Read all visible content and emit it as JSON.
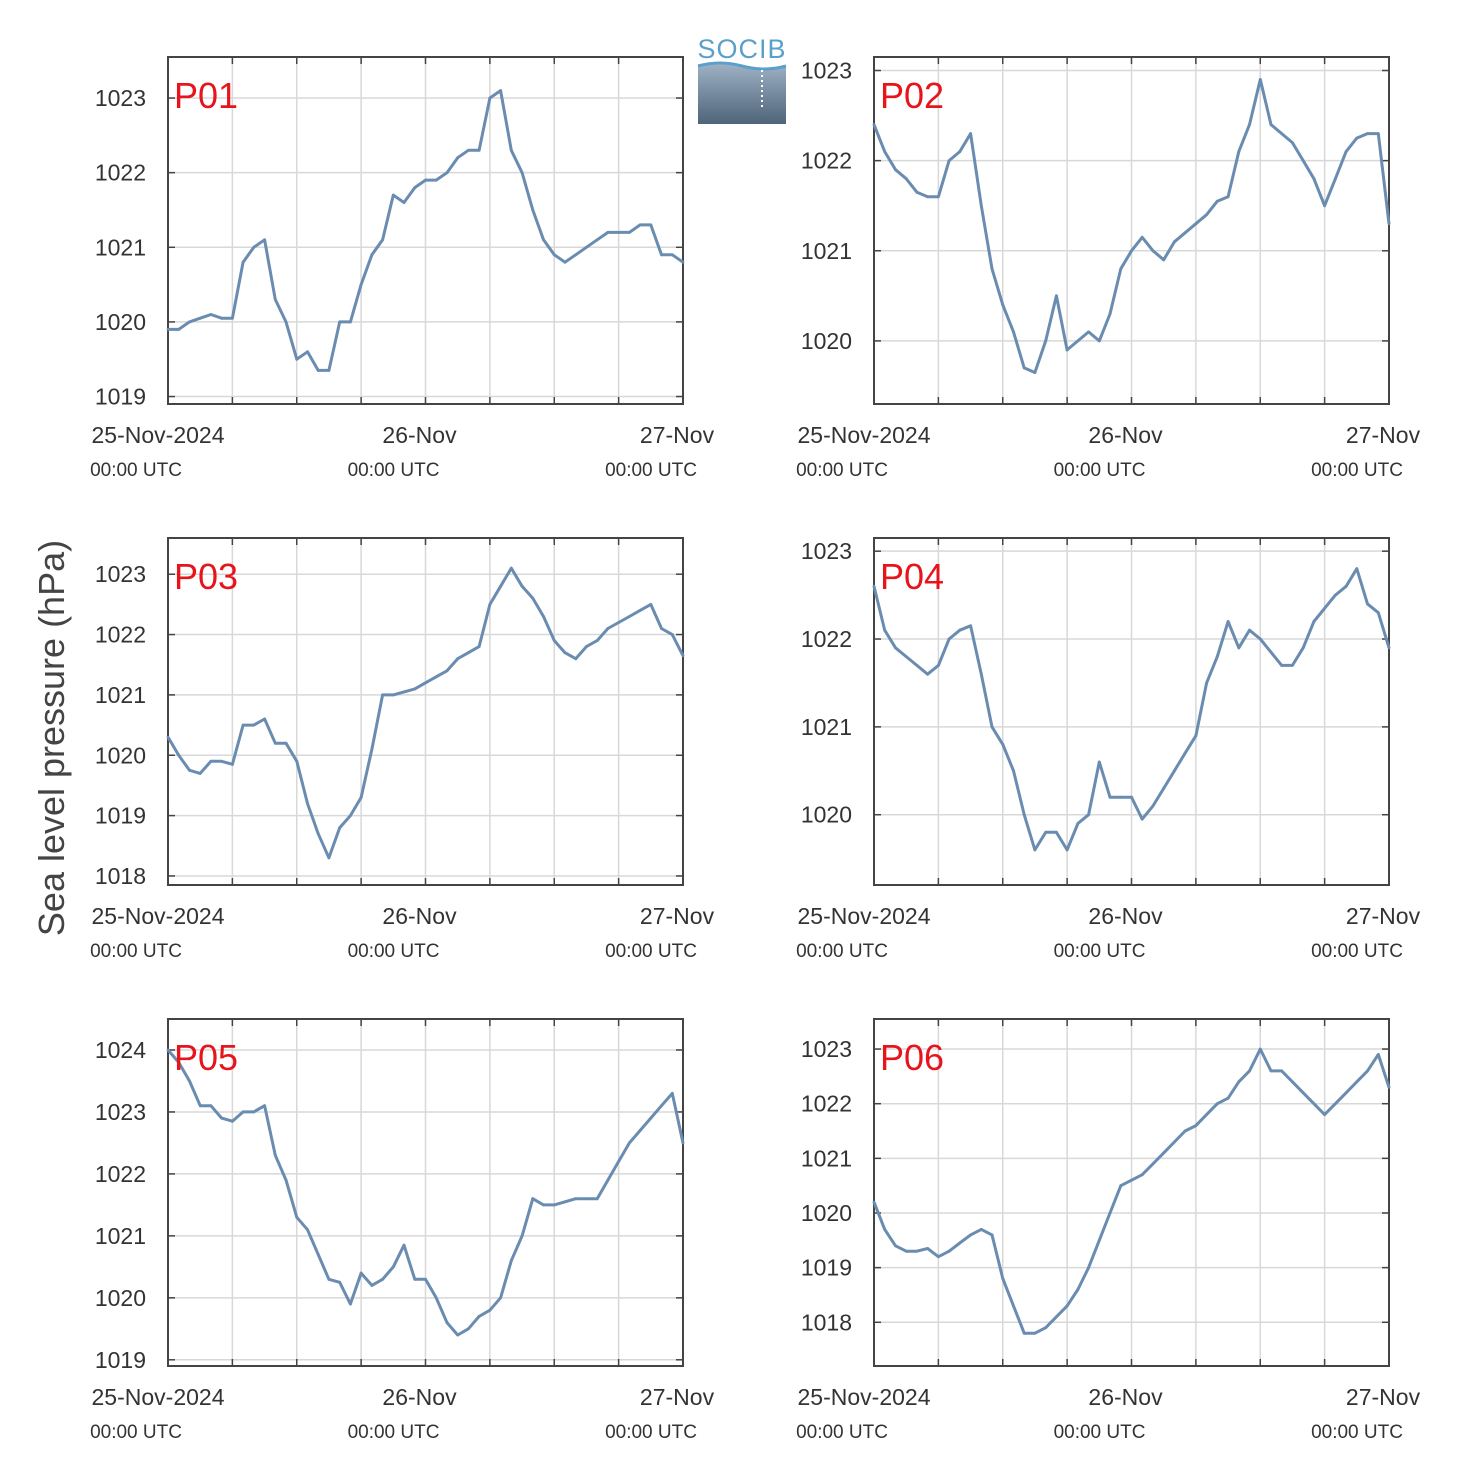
{
  "figure": {
    "ylabel": "Sea level pressure (hPa)",
    "logo_text": "SOCIB",
    "x_ticks": [
      "25-Nov-2024",
      "26-Nov",
      "27-Nov"
    ],
    "x_subticks": [
      "00:00 UTC",
      "00:00 UTC",
      "00:00 UTC"
    ],
    "colors": {
      "line": "#6a8cb0",
      "label": "#e8141c",
      "grid": "#d8d8d8",
      "axis": "#444444"
    }
  },
  "chart_data": [
    {
      "type": "line",
      "title": "P01",
      "xlabel": "",
      "ylabel": "Sea level pressure (hPa)",
      "xlim": [
        0,
        48
      ],
      "ylim": [
        1018.9,
        1023.55
      ],
      "yticks": [
        1019,
        1020,
        1021,
        1022,
        1023
      ],
      "grid": true,
      "x": [
        0,
        1,
        2,
        3,
        4,
        5,
        6,
        7,
        8,
        9,
        10,
        11,
        12,
        13,
        14,
        15,
        16,
        17,
        18,
        19,
        20,
        21,
        22,
        23,
        24,
        25,
        26,
        27,
        28,
        29,
        30,
        31,
        32,
        33,
        34,
        35,
        36,
        37,
        38,
        39,
        40,
        41,
        42,
        43,
        44,
        45,
        46,
        47,
        48
      ],
      "values": [
        1019.9,
        1019.9,
        1020.0,
        1020.05,
        1020.1,
        1020.05,
        1020.05,
        1020.8,
        1021.0,
        1021.1,
        1020.3,
        1020.0,
        1019.5,
        1019.6,
        1019.35,
        1019.35,
        1020.0,
        1020.0,
        1020.5,
        1020.9,
        1021.1,
        1021.7,
        1021.6,
        1021.8,
        1021.9,
        1021.9,
        1022.0,
        1022.2,
        1022.3,
        1022.3,
        1023.0,
        1023.1,
        1022.3,
        1022.0,
        1021.5,
        1021.1,
        1020.9,
        1020.8,
        1020.9,
        1021.0,
        1021.1,
        1021.2,
        1021.2,
        1021.2,
        1021.3,
        1021.3,
        1020.9,
        1020.9,
        1020.8
      ]
    },
    {
      "type": "line",
      "title": "P02",
      "xlabel": "",
      "ylabel": "Sea level pressure (hPa)",
      "xlim": [
        0,
        48
      ],
      "ylim": [
        1019.3,
        1023.15
      ],
      "yticks": [
        1020,
        1021,
        1022,
        1023
      ],
      "grid": true,
      "x": [
        0,
        1,
        2,
        3,
        4,
        5,
        6,
        7,
        8,
        9,
        10,
        11,
        12,
        13,
        14,
        15,
        16,
        17,
        18,
        19,
        20,
        21,
        22,
        23,
        24,
        25,
        26,
        27,
        28,
        29,
        30,
        31,
        32,
        33,
        34,
        35,
        36,
        37,
        38,
        39,
        40,
        41,
        42,
        43,
        44,
        45,
        46,
        47,
        48
      ],
      "values": [
        1022.4,
        1022.1,
        1021.9,
        1021.8,
        1021.65,
        1021.6,
        1021.6,
        1022.0,
        1022.1,
        1022.3,
        1021.5,
        1020.8,
        1020.4,
        1020.1,
        1019.7,
        1019.65,
        1020.0,
        1020.5,
        1019.9,
        1020.0,
        1020.1,
        1020.0,
        1020.3,
        1020.8,
        1021.0,
        1021.15,
        1021.0,
        1020.9,
        1021.1,
        1021.2,
        1021.3,
        1021.4,
        1021.55,
        1021.6,
        1022.1,
        1022.4,
        1022.9,
        1022.4,
        1022.3,
        1022.2,
        1022.0,
        1021.8,
        1021.5,
        1021.8,
        1022.1,
        1022.25,
        1022.3,
        1022.3,
        1021.3
      ]
    },
    {
      "type": "line",
      "title": "P03",
      "xlabel": "",
      "ylabel": "Sea level pressure (hPa)",
      "xlim": [
        0,
        48
      ],
      "ylim": [
        1017.85,
        1023.6
      ],
      "yticks": [
        1018,
        1019,
        1020,
        1021,
        1022,
        1023
      ],
      "grid": true,
      "x": [
        0,
        1,
        2,
        3,
        4,
        5,
        6,
        7,
        8,
        9,
        10,
        11,
        12,
        13,
        14,
        15,
        16,
        17,
        18,
        19,
        20,
        21,
        22,
        23,
        24,
        25,
        26,
        27,
        28,
        29,
        30,
        31,
        32,
        33,
        34,
        35,
        36,
        37,
        38,
        39,
        40,
        41,
        42,
        43,
        44,
        45,
        46,
        47,
        48
      ],
      "values": [
        1020.3,
        1020.0,
        1019.75,
        1019.7,
        1019.9,
        1019.9,
        1019.85,
        1020.5,
        1020.5,
        1020.6,
        1020.2,
        1020.2,
        1019.9,
        1019.2,
        1018.7,
        1018.3,
        1018.8,
        1019.0,
        1019.3,
        1020.1,
        1021.0,
        1021.0,
        1021.05,
        1021.1,
        1021.2,
        1021.3,
        1021.4,
        1021.6,
        1021.7,
        1021.8,
        1022.5,
        1022.8,
        1023.1,
        1022.8,
        1022.6,
        1022.3,
        1021.9,
        1021.7,
        1021.6,
        1021.8,
        1021.9,
        1022.1,
        1022.2,
        1022.3,
        1022.4,
        1022.5,
        1022.1,
        1022.0,
        1021.65
      ]
    },
    {
      "type": "line",
      "title": "P04",
      "xlabel": "",
      "ylabel": "Sea level pressure (hPa)",
      "xlim": [
        0,
        48
      ],
      "ylim": [
        1019.2,
        1023.15
      ],
      "yticks": [
        1020,
        1021,
        1022,
        1023
      ],
      "grid": true,
      "x": [
        0,
        1,
        2,
        3,
        4,
        5,
        6,
        7,
        8,
        9,
        10,
        11,
        12,
        13,
        14,
        15,
        16,
        17,
        18,
        19,
        20,
        21,
        22,
        23,
        24,
        25,
        26,
        27,
        28,
        29,
        30,
        31,
        32,
        33,
        34,
        35,
        36,
        37,
        38,
        39,
        40,
        41,
        42,
        43,
        44,
        45,
        46,
        47,
        48
      ],
      "values": [
        1022.6,
        1022.1,
        1021.9,
        1021.8,
        1021.7,
        1021.6,
        1021.7,
        1022.0,
        1022.1,
        1022.15,
        1021.6,
        1021.0,
        1020.8,
        1020.5,
        1020.0,
        1019.6,
        1019.8,
        1019.8,
        1019.6,
        1019.9,
        1020.0,
        1020.6,
        1020.2,
        1020.2,
        1020.2,
        1019.95,
        1020.1,
        1020.3,
        1020.5,
        1020.7,
        1020.9,
        1021.5,
        1021.8,
        1022.2,
        1021.9,
        1022.1,
        1022.0,
        1021.85,
        1021.7,
        1021.7,
        1021.9,
        1022.2,
        1022.35,
        1022.5,
        1022.6,
        1022.8,
        1022.4,
        1022.3,
        1021.9
      ]
    },
    {
      "type": "line",
      "title": "P05",
      "xlabel": "",
      "ylabel": "Sea level pressure (hPa)",
      "xlim": [
        0,
        48
      ],
      "ylim": [
        1018.9,
        1024.5
      ],
      "yticks": [
        1019,
        1020,
        1021,
        1022,
        1023,
        1024
      ],
      "grid": true,
      "x": [
        0,
        1,
        2,
        3,
        4,
        5,
        6,
        7,
        8,
        9,
        10,
        11,
        12,
        13,
        14,
        15,
        16,
        17,
        18,
        19,
        20,
        21,
        22,
        23,
        24,
        25,
        26,
        27,
        28,
        29,
        30,
        31,
        32,
        33,
        34,
        35,
        36,
        37,
        38,
        39,
        40,
        41,
        42,
        43,
        44,
        45,
        46,
        47,
        48
      ],
      "values": [
        1024.0,
        1023.8,
        1023.5,
        1023.1,
        1023.1,
        1022.9,
        1022.85,
        1023.0,
        1023.0,
        1023.1,
        1022.3,
        1021.9,
        1021.3,
        1021.1,
        1020.7,
        1020.3,
        1020.25,
        1019.9,
        1020.4,
        1020.2,
        1020.3,
        1020.5,
        1020.85,
        1020.3,
        1020.3,
        1020.0,
        1019.6,
        1019.4,
        1019.5,
        1019.7,
        1019.8,
        1020.0,
        1020.6,
        1021.0,
        1021.6,
        1021.5,
        1021.5,
        1021.55,
        1021.6,
        1021.6,
        1021.6,
        1021.9,
        1022.2,
        1022.5,
        1022.7,
        1022.9,
        1023.1,
        1023.3,
        1022.5
      ]
    },
    {
      "type": "line",
      "title": "P06",
      "xlabel": "",
      "ylabel": "Sea level pressure (hPa)",
      "xlim": [
        0,
        48
      ],
      "ylim": [
        1017.2,
        1023.55
      ],
      "yticks": [
        1018,
        1019,
        1020,
        1021,
        1022,
        1023
      ],
      "grid": true,
      "x": [
        0,
        1,
        2,
        3,
        4,
        5,
        6,
        7,
        8,
        9,
        10,
        11,
        12,
        13,
        14,
        15,
        16,
        17,
        18,
        19,
        20,
        21,
        22,
        23,
        24,
        25,
        26,
        27,
        28,
        29,
        30,
        31,
        32,
        33,
        34,
        35,
        36,
        37,
        38,
        39,
        40,
        41,
        42,
        43,
        44,
        45,
        46,
        47,
        48
      ],
      "values": [
        1020.2,
        1019.7,
        1019.4,
        1019.3,
        1019.3,
        1019.35,
        1019.2,
        1019.3,
        1019.45,
        1019.6,
        1019.7,
        1019.6,
        1018.8,
        1018.3,
        1017.8,
        1017.8,
        1017.9,
        1018.1,
        1018.3,
        1018.6,
        1019.0,
        1019.5,
        1020.0,
        1020.5,
        1020.6,
        1020.7,
        1020.9,
        1021.1,
        1021.3,
        1021.5,
        1021.6,
        1021.8,
        1022.0,
        1022.1,
        1022.4,
        1022.6,
        1023.0,
        1022.6,
        1022.6,
        1022.4,
        1022.2,
        1022.0,
        1021.8,
        1022.0,
        1022.2,
        1022.4,
        1022.6,
        1022.9,
        1022.3
      ]
    }
  ]
}
